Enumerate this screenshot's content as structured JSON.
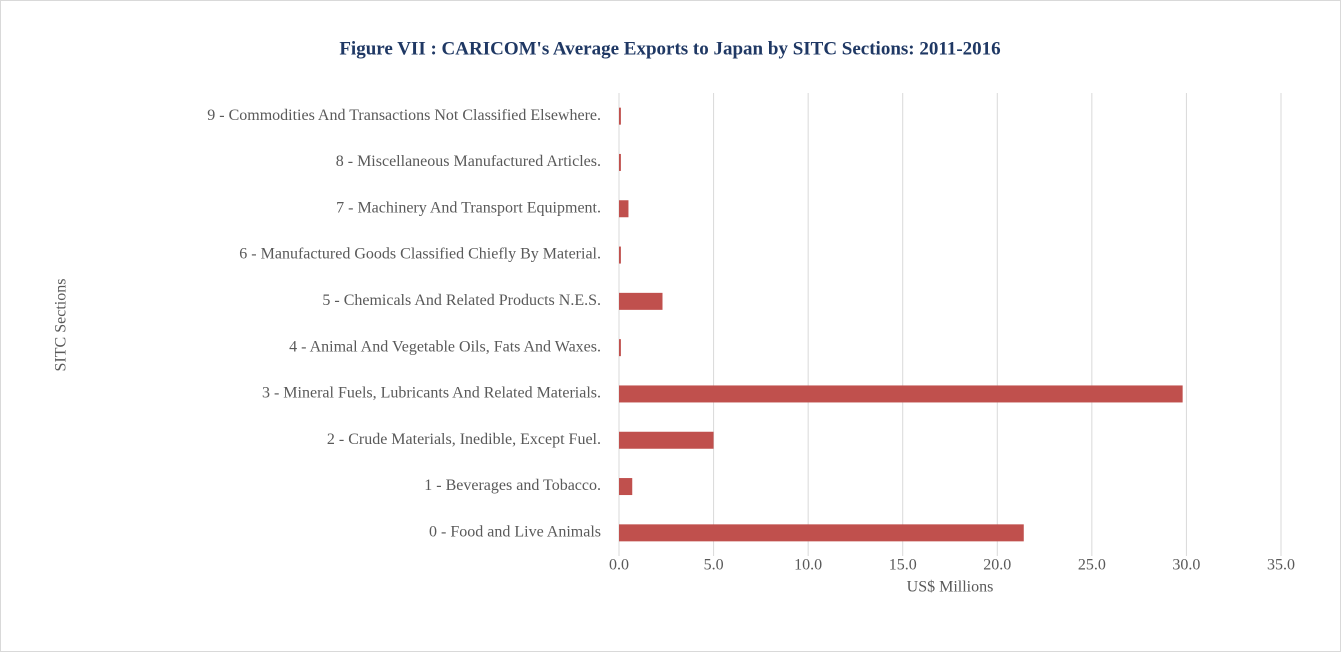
{
  "chart_data": {
    "type": "barh",
    "title": "Figure VII : CARICOM's Average Exports to Japan by SITC Sections: 2011-2016",
    "x_label": "US$ Millions",
    "y_label": "SITC Sections",
    "categories": [
      "0 - Food and Live Animals",
      "1 - Beverages and Tobacco.",
      "2 - Crude Materials, Inedible, Except Fuel.",
      "3 - Mineral Fuels, Lubricants And Related Materials.",
      "4 - Animal And Vegetable Oils, Fats And Waxes.",
      "5 - Chemicals And Related Products N.E.S.",
      "6 - Manufactured Goods Classified Chiefly By Material.",
      "7 - Machinery And Transport Equipment.",
      "8 - Miscellaneous Manufactured Articles.",
      "9 - Commodities And Transactions Not Classified Elsewhere."
    ],
    "values": [
      21.4,
      0.7,
      5.0,
      29.8,
      0.1,
      2.3,
      0.1,
      0.5,
      0.1,
      0.1
    ],
    "color": "#c0504d",
    "xlim": [
      0,
      35
    ],
    "xticks": [
      {
        "value": 0,
        "label": "0.0"
      },
      {
        "value": 5,
        "label": "5.0"
      },
      {
        "value": 10,
        "label": "10.0"
      },
      {
        "value": 15,
        "label": "15.0"
      },
      {
        "value": 20,
        "label": "20.0"
      },
      {
        "value": 25,
        "label": "25.0"
      },
      {
        "value": 30,
        "label": "30.0"
      },
      {
        "value": 35,
        "label": "35.0"
      }
    ],
    "grid": true
  }
}
